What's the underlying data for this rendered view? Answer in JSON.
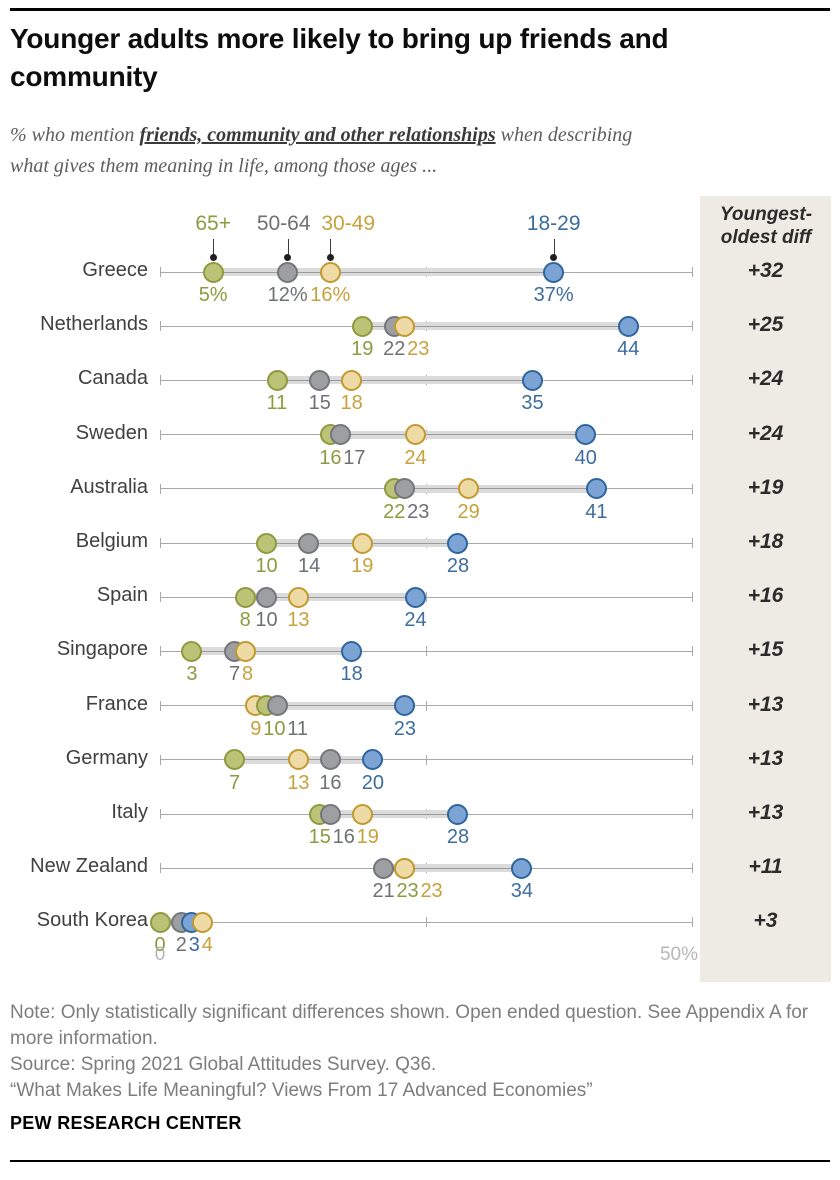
{
  "header": {
    "title": "Younger adults more likely to bring up friends and community",
    "subtitle_prefix": "% who mention ",
    "subtitle_emphasis": "friends, community and other relationships",
    "subtitle_suffix": " when describing what gives them meaning in life, among those ages ..."
  },
  "diff_panel": {
    "header": "Youngest-oldest diff"
  },
  "chart_data": {
    "type": "scatter",
    "subtype": "dot-plot",
    "title": "Younger adults more likely to bring up friends and community",
    "x_axis": {
      "min": 0,
      "max": 50,
      "tick_values": [
        0,
        25,
        50
      ],
      "tick_labels_shown": [
        "0",
        "50%"
      ]
    },
    "legend_position": "top, pointing at first row dots",
    "grid": "per-row horizontal axis lines with end and mid ticks",
    "age_groups": [
      {
        "id": "65plus",
        "label": "65+",
        "text_color": "#8e9a3f",
        "fill": "#bcc377",
        "stroke": "#8e9a3f"
      },
      {
        "id": "50-64",
        "label": "50-64",
        "text_color": "#6e7174",
        "fill": "#9d9fa2",
        "stroke": "#747679"
      },
      {
        "id": "30-49",
        "label": "30-49",
        "text_color": "#c8a13b",
        "fill": "#eedaa5",
        "stroke": "#c2992f"
      },
      {
        "id": "18-29",
        "label": "18-29",
        "text_color": "#3d6d9e",
        "fill": "#7ba4d4",
        "stroke": "#2f659f"
      }
    ],
    "rows": [
      {
        "country": "Greece",
        "values": [
          5,
          12,
          16,
          37
        ],
        "value_labels": [
          "5%",
          "12%",
          "16%",
          "37%"
        ],
        "diff": "+32"
      },
      {
        "country": "Netherlands",
        "values": [
          19,
          22,
          23,
          44
        ],
        "value_labels": [
          "19",
          "22",
          "23",
          "44"
        ],
        "diff": "+25"
      },
      {
        "country": "Canada",
        "values": [
          11,
          15,
          18,
          35
        ],
        "value_labels": [
          "11",
          "15",
          "18",
          "35"
        ],
        "diff": "+24"
      },
      {
        "country": "Sweden",
        "values": [
          16,
          17,
          24,
          40
        ],
        "value_labels": [
          "16",
          "17",
          "24",
          "40"
        ],
        "diff": "+24"
      },
      {
        "country": "Australia",
        "values": [
          22,
          23,
          29,
          41
        ],
        "value_labels": [
          "22",
          "23",
          "29",
          "41"
        ],
        "diff": "+19"
      },
      {
        "country": "Belgium",
        "values": [
          10,
          14,
          19,
          28
        ],
        "value_labels": [
          "10",
          "14",
          "19",
          "28"
        ],
        "diff": "+18"
      },
      {
        "country": "Spain",
        "values": [
          8,
          10,
          13,
          24
        ],
        "value_labels": [
          "8",
          "10",
          "13",
          "24"
        ],
        "diff": "+16"
      },
      {
        "country": "Singapore",
        "values": [
          3,
          7,
          8,
          18
        ],
        "value_labels": [
          "3",
          "7",
          "8",
          "18"
        ],
        "diff": "+15"
      },
      {
        "country": "France",
        "values": [
          10,
          11,
          9,
          23
        ],
        "value_labels": [
          "10",
          "11",
          "9",
          "23"
        ],
        "diff": "+13"
      },
      {
        "country": "Germany",
        "values": [
          7,
          16,
          13,
          20
        ],
        "value_labels": [
          "7",
          "16",
          "13",
          "20"
        ],
        "diff": "+13"
      },
      {
        "country": "Italy",
        "values": [
          15,
          16,
          19,
          28
        ],
        "value_labels": [
          "15",
          "16",
          "19",
          "28"
        ],
        "diff": "+13"
      },
      {
        "country": "New Zealand",
        "values": [
          23,
          21,
          23,
          34
        ],
        "value_labels": [
          "23",
          "21",
          "23",
          "34"
        ],
        "diff": "+11"
      },
      {
        "country": "South Korea",
        "values": [
          0,
          2,
          4,
          3
        ],
        "value_labels": [
          "0",
          "2",
          "4",
          "3"
        ],
        "diff": "+3"
      }
    ],
    "band_color": "#dbdbdb",
    "axis_color": "#a9a9a9",
    "axis_end_labels": {
      "left": "0",
      "right": "50%"
    }
  },
  "footer": {
    "note": "Note: Only statistically significant differences shown. Open ended question. See Appendix A for more information.",
    "source": "Source: Spring 2021 Global Attitudes Survey. Q36.",
    "quote": "“What Makes Life Meaningful? Views From 17 Advanced Economies”",
    "brand": "PEW RESEARCH CENTER"
  }
}
